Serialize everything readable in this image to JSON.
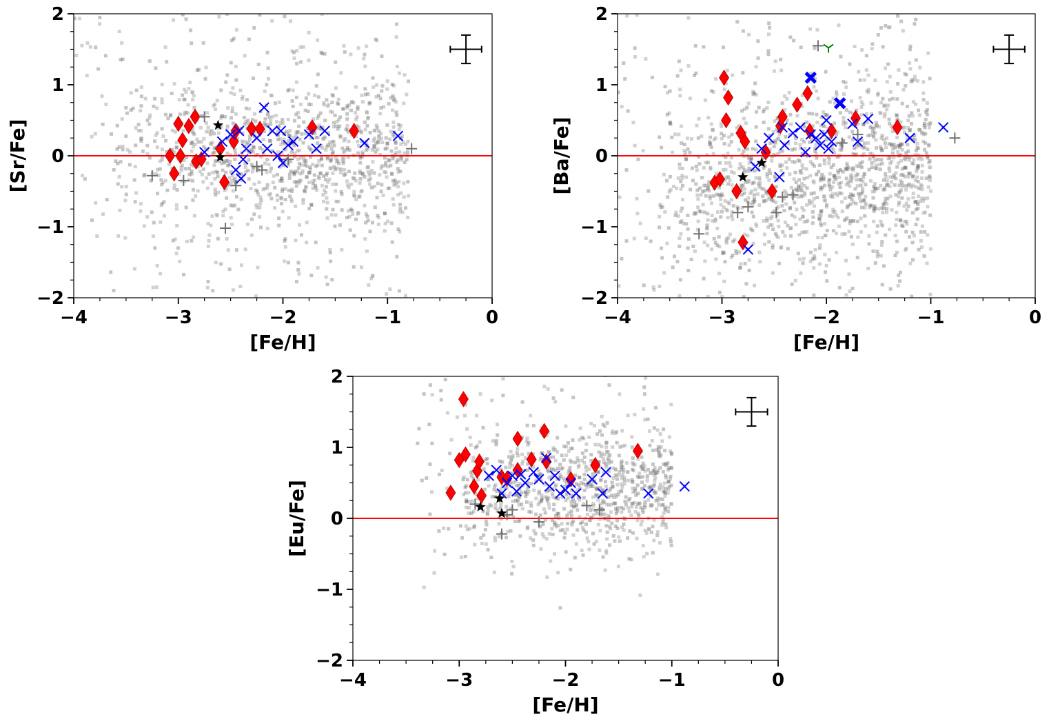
{
  "chart_data": [
    {
      "type": "scatter",
      "xlabel": "[Fe/H]",
      "ylabel": "[Sr/Fe]",
      "xlim": [
        -4,
        0
      ],
      "ylim": [
        -2,
        2
      ],
      "xticks": [
        "−4",
        "−3",
        "−2",
        "−1",
        "0"
      ],
      "yticks": [
        "−2",
        "−1",
        "0",
        "1",
        "2"
      ],
      "reference_line_y": 0,
      "error_bar": {
        "x": -0.25,
        "y": 1.5,
        "xerr": 0.15,
        "yerr": 0.2
      },
      "background_cloud": {
        "description_points": 1200,
        "x_range": [
          -4,
          -0.8
        ],
        "y_center": 0.0,
        "y_spread": 0.55
      },
      "series": [
        {
          "marker": "diamond",
          "color": "#ff0000",
          "points": [
            [
              -3.08,
              0
            ],
            [
              -3.04,
              -0.25
            ],
            [
              -3.0,
              0.45
            ],
            [
              -2.98,
              0.0
            ],
            [
              -2.96,
              0.22
            ],
            [
              -2.9,
              0.42
            ],
            [
              -2.84,
              0.55
            ],
            [
              -2.83,
              -0.08
            ],
            [
              -2.78,
              -0.05
            ],
            [
              -2.6,
              0.1
            ],
            [
              -2.56,
              -0.37
            ],
            [
              -2.47,
              0.2
            ],
            [
              -2.45,
              0.35
            ],
            [
              -2.3,
              0.38
            ],
            [
              -2.22,
              0.38
            ],
            [
              -1.72,
              0.4
            ],
            [
              -1.32,
              0.35
            ]
          ]
        },
        {
          "marker": "x",
          "color": "#0000ff",
          "points": [
            [
              -2.75,
              0.05
            ],
            [
              -2.58,
              0.2
            ],
            [
              -2.5,
              0.3
            ],
            [
              -2.45,
              -0.2
            ],
            [
              -2.42,
              0.35
            ],
            [
              -2.4,
              -0.32
            ],
            [
              -2.38,
              -0.05
            ],
            [
              -2.35,
              0.1
            ],
            [
              -2.25,
              0.25
            ],
            [
              -2.18,
              0.68
            ],
            [
              -2.15,
              0.1
            ],
            [
              -2.1,
              0.35
            ],
            [
              -2.05,
              0.0
            ],
            [
              -2.02,
              0.35
            ],
            [
              -2.0,
              -0.1
            ],
            [
              -1.95,
              0.15
            ],
            [
              -1.9,
              0.2
            ],
            [
              -1.75,
              0.3
            ],
            [
              -1.68,
              0.1
            ],
            [
              -1.6,
              0.35
            ],
            [
              -1.22,
              0.18
            ],
            [
              -0.9,
              0.28
            ]
          ]
        },
        {
          "marker": "plus",
          "color": "#707070",
          "points": [
            [
              -3.25,
              -0.28
            ],
            [
              -2.95,
              -0.35
            ],
            [
              -2.75,
              0.55
            ],
            [
              -2.55,
              -1.02
            ],
            [
              -2.45,
              -0.42
            ],
            [
              -2.25,
              -0.15
            ],
            [
              -2.2,
              -0.2
            ],
            [
              -1.95,
              -0.05
            ],
            [
              -0.77,
              0.1
            ]
          ]
        },
        {
          "marker": "star",
          "color": "#000000",
          "points": [
            [
              -2.62,
              0.43
            ],
            [
              -2.6,
              -0.02
            ]
          ]
        }
      ]
    },
    {
      "type": "scatter",
      "xlabel": "[Fe/H]",
      "ylabel": "[Ba/Fe]",
      "xlim": [
        -4,
        0
      ],
      "ylim": [
        -2,
        2
      ],
      "xticks": [
        "−4",
        "−3",
        "−2",
        "−1",
        "0"
      ],
      "yticks": [
        "−2",
        "−1",
        "0",
        "1",
        "2"
      ],
      "reference_line_y": 0,
      "error_bar": {
        "x": -0.25,
        "y": 1.5,
        "xerr": 0.15,
        "yerr": 0.2
      },
      "background_cloud": {
        "description_points": 1400,
        "x_range": [
          -4,
          -1.0
        ],
        "y_center": -0.25,
        "y_spread": 0.6
      },
      "series": [
        {
          "marker": "diamond",
          "color": "#ff0000",
          "points": [
            [
              -3.07,
              -0.38
            ],
            [
              -3.02,
              -0.33
            ],
            [
              -2.98,
              1.1
            ],
            [
              -2.96,
              0.5
            ],
            [
              -2.94,
              0.82
            ],
            [
              -2.86,
              -0.5
            ],
            [
              -2.82,
              0.32
            ],
            [
              -2.8,
              -1.22
            ],
            [
              -2.78,
              0.2
            ],
            [
              -2.58,
              0.05
            ],
            [
              -2.52,
              -0.5
            ],
            [
              -2.44,
              0.42
            ],
            [
              -2.42,
              0.55
            ],
            [
              -2.28,
              0.72
            ],
            [
              -2.18,
              0.88
            ],
            [
              -2.16,
              0.35
            ],
            [
              -1.95,
              0.35
            ],
            [
              -1.72,
              0.53
            ],
            [
              -1.32,
              0.4
            ]
          ]
        },
        {
          "marker": "x",
          "color": "#0000ff",
          "points": [
            [
              -2.75,
              -1.32
            ],
            [
              -2.68,
              -0.15
            ],
            [
              -2.62,
              0.1
            ],
            [
              -2.55,
              0.25
            ],
            [
              -2.45,
              -0.3
            ],
            [
              -2.42,
              0.4
            ],
            [
              -2.4,
              0.15
            ],
            [
              -2.32,
              0.32
            ],
            [
              -2.25,
              0.4
            ],
            [
              -2.2,
              0.05
            ],
            [
              -2.15,
              0.3
            ],
            [
              -2.1,
              0.25
            ],
            [
              -2.06,
              0.15
            ],
            [
              -2.02,
              0.3
            ],
            [
              -2.0,
              0.5
            ],
            [
              -1.98,
              0.1
            ],
            [
              -1.95,
              0.2
            ],
            [
              -1.75,
              0.45
            ],
            [
              -1.7,
              0.2
            ],
            [
              -1.6,
              0.52
            ],
            [
              -1.2,
              0.25
            ],
            [
              -0.88,
              0.4
            ]
          ]
        },
        {
          "marker": "x-bold",
          "color": "#0000ff",
          "points": [
            [
              -2.15,
              1.1
            ],
            [
              -1.87,
              0.74
            ]
          ]
        },
        {
          "marker": "plus",
          "color": "#707070",
          "points": [
            [
              -3.22,
              -1.1
            ],
            [
              -2.85,
              -0.8
            ],
            [
              -2.75,
              -0.72
            ],
            [
              -2.48,
              -0.8
            ],
            [
              -2.42,
              -0.58
            ],
            [
              -2.32,
              -0.55
            ],
            [
              -2.08,
              1.55
            ],
            [
              -1.85,
              0.18
            ],
            [
              -1.7,
              0.3
            ],
            [
              -0.77,
              0.25
            ]
          ]
        },
        {
          "marker": "tri_down",
          "color": "#008000",
          "points": [
            [
              -1.98,
              1.52
            ]
          ]
        },
        {
          "marker": "star",
          "color": "#000000",
          "points": [
            [
              -2.8,
              -0.3
            ],
            [
              -2.62,
              -0.1
            ]
          ]
        }
      ]
    },
    {
      "type": "scatter",
      "xlabel": "[Fe/H]",
      "ylabel": "[Eu/Fe]",
      "xlim": [
        -4,
        0
      ],
      "ylim": [
        -2,
        2
      ],
      "xticks": [
        "−4",
        "−3",
        "−2",
        "−1",
        "0"
      ],
      "yticks": [
        "−2",
        "−1",
        "0",
        "1",
        "2"
      ],
      "reference_line_y": 0,
      "error_bar": {
        "x": -0.25,
        "y": 1.5,
        "xerr": 0.15,
        "yerr": 0.2
      },
      "background_cloud": {
        "description_points": 900,
        "x_range": [
          -3.4,
          -1.0
        ],
        "y_center": 0.45,
        "y_spread": 0.4
      },
      "series": [
        {
          "marker": "diamond",
          "color": "#ff0000",
          "points": [
            [
              -3.08,
              0.36
            ],
            [
              -3.0,
              0.82
            ],
            [
              -2.96,
              1.68
            ],
            [
              -2.94,
              0.9
            ],
            [
              -2.86,
              0.45
            ],
            [
              -2.83,
              0.67
            ],
            [
              -2.81,
              0.8
            ],
            [
              -2.79,
              0.32
            ],
            [
              -2.6,
              0.58
            ],
            [
              -2.55,
              0.56
            ],
            [
              -2.45,
              1.12
            ],
            [
              -2.45,
              0.68
            ],
            [
              -2.32,
              0.83
            ],
            [
              -2.2,
              1.23
            ],
            [
              -2.18,
              0.8
            ],
            [
              -1.95,
              0.55
            ],
            [
              -1.72,
              0.75
            ],
            [
              -1.32,
              0.95
            ]
          ]
        },
        {
          "marker": "x",
          "color": "#0000ff",
          "points": [
            [
              -2.72,
              0.6
            ],
            [
              -2.65,
              0.68
            ],
            [
              -2.6,
              0.35
            ],
            [
              -2.55,
              0.5
            ],
            [
              -2.5,
              0.6
            ],
            [
              -2.46,
              0.38
            ],
            [
              -2.42,
              0.62
            ],
            [
              -2.38,
              0.5
            ],
            [
              -2.3,
              0.65
            ],
            [
              -2.25,
              0.55
            ],
            [
              -2.18,
              0.85
            ],
            [
              -2.15,
              0.45
            ],
            [
              -2.1,
              0.6
            ],
            [
              -2.05,
              0.35
            ],
            [
              -2.0,
              0.4
            ],
            [
              -1.95,
              0.5
            ],
            [
              -1.9,
              0.35
            ],
            [
              -1.75,
              0.55
            ],
            [
              -1.65,
              0.35
            ],
            [
              -1.62,
              0.65
            ],
            [
              -1.22,
              0.35
            ],
            [
              -0.88,
              0.45
            ]
          ]
        },
        {
          "marker": "plus",
          "color": "#707070",
          "points": [
            [
              -2.85,
              0.2
            ],
            [
              -2.62,
              0.3
            ],
            [
              -2.6,
              -0.22
            ],
            [
              -2.55,
              0.05
            ],
            [
              -2.5,
              0.12
            ],
            [
              -2.25,
              -0.05
            ],
            [
              -1.8,
              0.18
            ],
            [
              -1.68,
              0.12
            ]
          ]
        },
        {
          "marker": "star",
          "color": "#000000",
          "points": [
            [
              -2.8,
              0.16
            ],
            [
              -2.62,
              0.28
            ],
            [
              -2.6,
              0.07
            ]
          ]
        }
      ]
    }
  ]
}
